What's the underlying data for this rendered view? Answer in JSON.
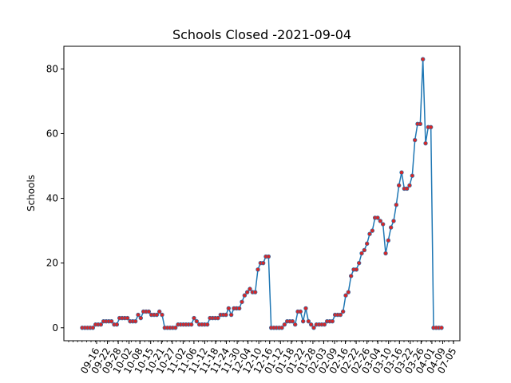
{
  "chart_data": {
    "type": "line",
    "title": "Schools Closed -2021-09-04",
    "xlabel": "",
    "ylabel": "Schools",
    "ylim": [
      -4,
      87
    ],
    "yticks": [
      0,
      20,
      40,
      60,
      80
    ],
    "xtick_labels": [
      "09-16",
      "09-22",
      "09-28",
      "10-02",
      "10-08",
      "10-15",
      "10-21",
      "10-27",
      "11-02",
      "11-06",
      "11-12",
      "11-18",
      "11-24",
      "11-30",
      "12-04",
      "12-10",
      "12-16",
      "01-12",
      "01-18",
      "01-22",
      "01-28",
      "02-03",
      "02-09",
      "02-16",
      "02-22",
      "02-26",
      "03-04",
      "03-10",
      "03-16",
      "03-22",
      "03-26",
      "04-01",
      "04-09",
      "07-05"
    ],
    "line_color": "#1f77b4",
    "marker_color": "#d62728",
    "values": [
      0,
      0,
      0,
      0,
      0,
      1,
      1,
      1,
      2,
      2,
      2,
      2,
      1,
      1,
      3,
      3,
      3,
      3,
      2,
      2,
      2,
      4,
      3,
      5,
      5,
      5,
      4,
      4,
      4,
      5,
      4,
      0,
      0,
      0,
      0,
      0,
      1,
      1,
      1,
      1,
      1,
      1,
      3,
      2,
      1,
      1,
      1,
      1,
      3,
      3,
      3,
      3,
      4,
      4,
      4,
      6,
      4,
      6,
      6,
      6,
      8,
      10,
      11,
      12,
      11,
      11,
      18,
      20,
      20,
      22,
      22,
      0,
      0,
      0,
      0,
      0,
      1,
      2,
      2,
      2,
      1,
      5,
      5,
      2,
      6,
      2,
      1,
      0,
      1,
      1,
      1,
      1,
      2,
      2,
      2,
      4,
      4,
      4,
      5,
      10,
      11,
      16,
      18,
      18,
      20,
      23,
      24,
      26,
      29,
      30,
      34,
      34,
      33,
      32,
      23,
      27,
      31,
      33,
      38,
      44,
      48,
      43,
      43,
      44,
      47,
      58,
      63,
      63,
      83,
      57,
      62,
      62,
      0,
      0,
      0,
      0
    ]
  }
}
